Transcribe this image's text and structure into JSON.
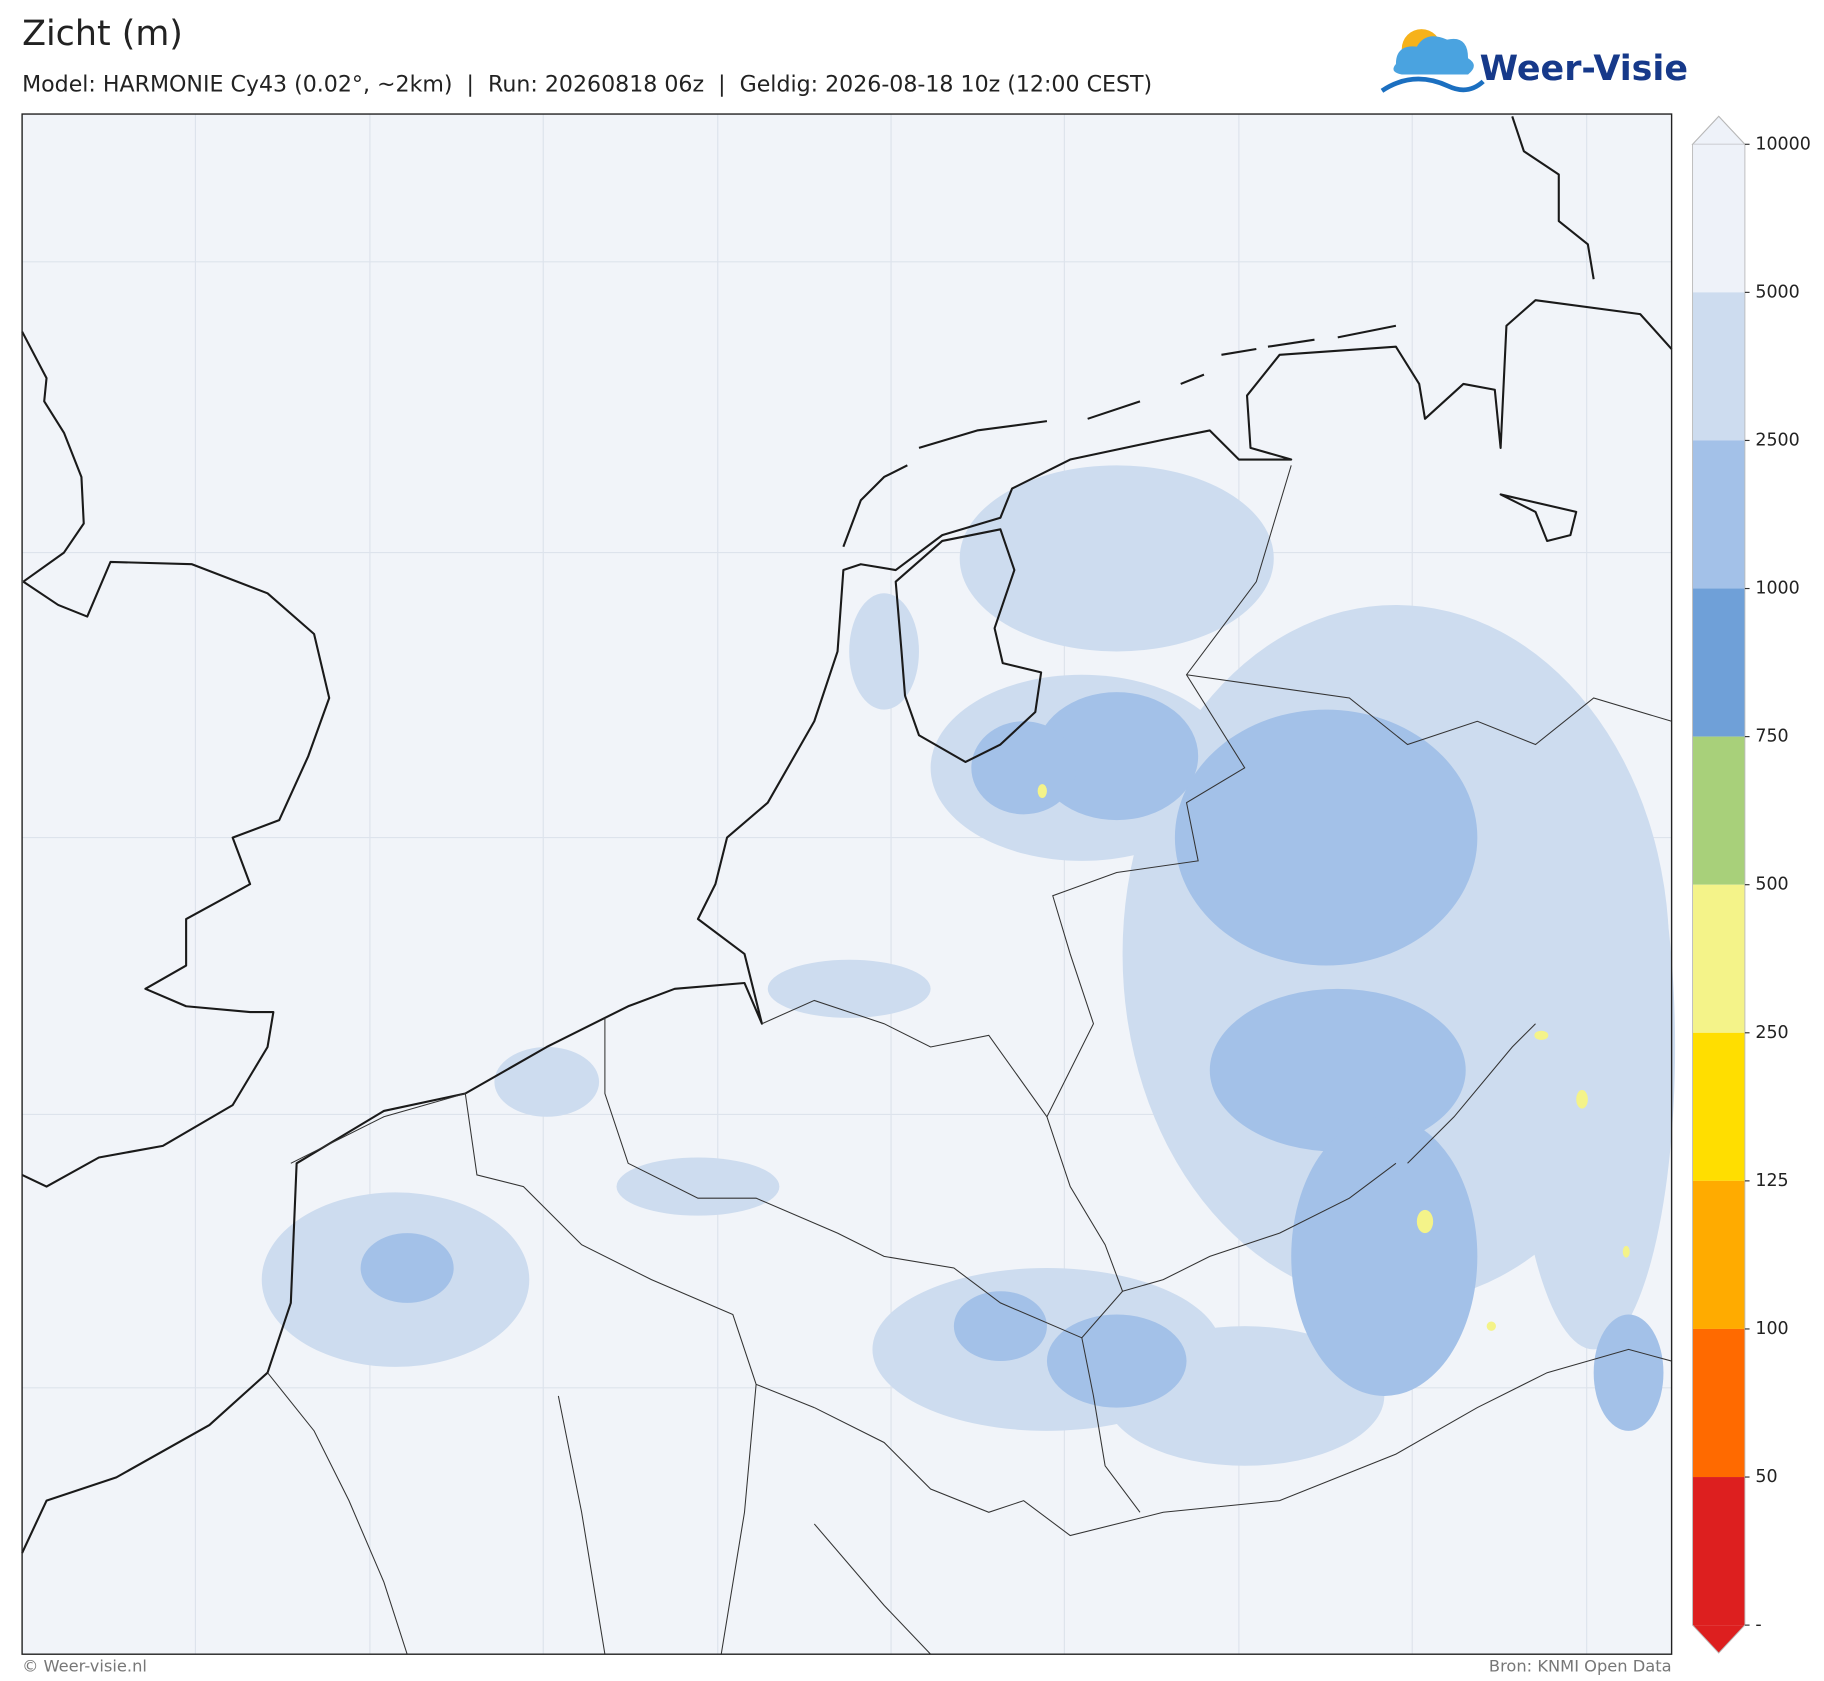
{
  "header": {
    "title": "Zicht (m)",
    "subtitle": "Model: HARMONIE Cy43 (0.02°, ~2km)  |  Run: 20260818 06z  |  Geldig: 2026-08-18 10z (12:00 CEST)"
  },
  "logo": {
    "text": "Weer-Visie"
  },
  "colorbar": {
    "ticks": [
      10000,
      5000,
      2500,
      1000,
      750,
      500,
      250,
      125,
      100,
      50
    ],
    "end_label": "-",
    "colors": [
      "#eef2f9",
      "#cddcef",
      "#a3c1e8",
      "#6fa0d8",
      "#a8d07a",
      "#f4f389",
      "#ffde00",
      "#ffab00",
      "#ff6a00",
      "#dd1f1f"
    ]
  },
  "footer": {
    "left": "© Weer-visie.nl",
    "right": "Bron: KNMI Open Data"
  }
}
